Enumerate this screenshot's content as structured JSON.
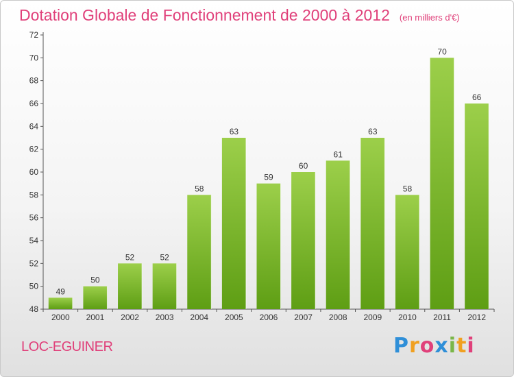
{
  "header": {
    "title": "Dotation Globale de Fonctionnement de 2000 à 2012",
    "unit": "(en milliers d'€)"
  },
  "footer": {
    "place": "LOC-EGUINER",
    "logo": [
      "P",
      "r",
      "o",
      "x",
      "i",
      "t",
      "i"
    ]
  },
  "colors": {
    "title": "#e0407a",
    "bar_light": "#9ccf4a",
    "bar_dark": "#5e9e14"
  },
  "chart_data": {
    "type": "bar",
    "title": "Dotation Globale de Fonctionnement de 2000 à 2012",
    "categories": [
      "2000",
      "2001",
      "2002",
      "2003",
      "2004",
      "2005",
      "2006",
      "2007",
      "2008",
      "2009",
      "2010",
      "2011",
      "2012"
    ],
    "values": [
      49,
      50,
      52,
      52,
      58,
      63,
      59,
      60,
      61,
      63,
      58,
      70,
      66
    ],
    "ylim": [
      48,
      72
    ],
    "yticks": [
      48,
      50,
      52,
      54,
      56,
      58,
      60,
      62,
      64,
      66,
      68,
      70,
      72
    ],
    "xlabel": "",
    "ylabel": "",
    "grid": false
  }
}
